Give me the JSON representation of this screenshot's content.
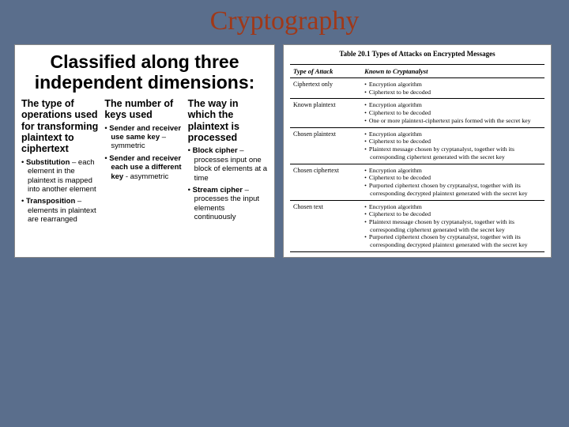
{
  "title": "Cryptography",
  "left": {
    "heading": "Classified along three independent dimensions:",
    "columns": [
      {
        "head": "The type of operations used for transforming plaintext to ciphertext",
        "items": [
          "<b>Substitution</b> – each element in the plaintext is mapped into another element",
          "<b>Transposition</b> – elements in plaintext are rearranged"
        ]
      },
      {
        "head": "The number of keys used",
        "items": [
          "<b>Sender and receiver use same key</b> – symmetric",
          "<b>Sender and receiver each use a different key</b> - asymmetric"
        ]
      },
      {
        "head": "The way in which the plaintext is processed",
        "items": [
          "<b>Block cipher</b> – processes input one block of elements at a time",
          "<b>Stream cipher</b> – processes the input elements continuously"
        ]
      }
    ]
  },
  "table": {
    "caption": "Table 20.1  Types of Attacks on Encrypted Messages",
    "headers": [
      "Type of Attack",
      "Known to Cryptanalyst"
    ],
    "rows": [
      {
        "type": "Ciphertext only",
        "known": [
          "Encryption algorithm",
          "Ciphertext to be decoded"
        ]
      },
      {
        "type": "Known plaintext",
        "known": [
          "Encryption algorithm",
          "Ciphertext to be decoded",
          "One or more plaintext-ciphertext pairs formed with the secret key"
        ]
      },
      {
        "type": "Chosen plaintext",
        "known": [
          "Encryption algorithm",
          "Ciphertext to be decoded",
          "Plaintext message chosen by cryptanalyst, together with its corresponding ciphertext generated with the secret key"
        ]
      },
      {
        "type": "Chosen ciphertext",
        "known": [
          "Encryption algorithm",
          "Ciphertext to be decoded",
          "Purported ciphertext chosen by cryptanalyst, together with its corresponding decrypted plaintext generated with the secret key"
        ]
      },
      {
        "type": "Chosen text",
        "known": [
          "Encryption algorithm",
          "Ciphertext to be decoded",
          "Plaintext message chosen by cryptanalyst, together with its corresponding ciphertext generated with the secret key",
          "Purported ciphertext chosen by cryptanalyst, together with its corresponding decrypted plaintext generated with the secret key"
        ]
      }
    ]
  }
}
